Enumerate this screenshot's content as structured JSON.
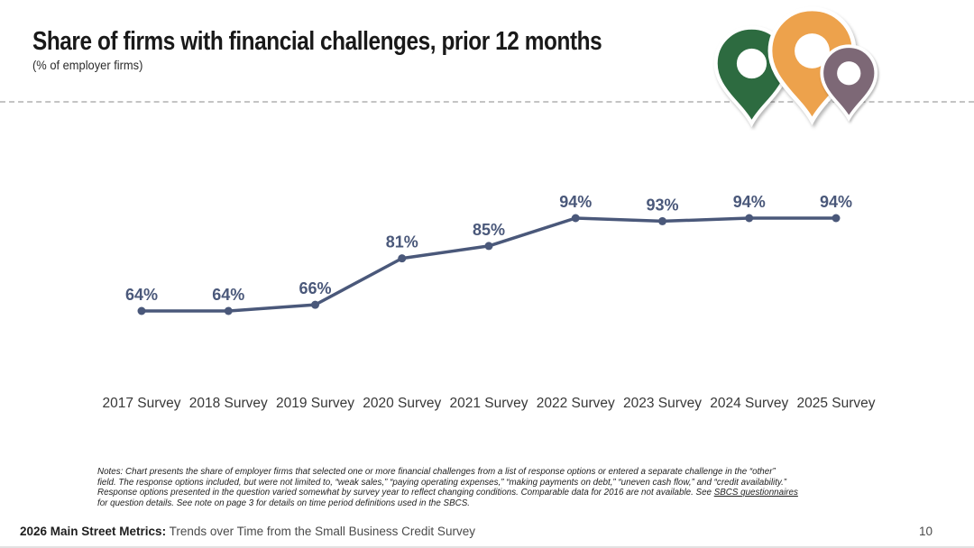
{
  "header": {
    "title": "Share of firms with financial challenges, prior 12 months",
    "subtitle": "(% of employer firms)"
  },
  "pins": {
    "colors": {
      "green": "#2D6B40",
      "orange": "#EDA24C",
      "purple": "#7D6876"
    }
  },
  "chart_data": {
    "type": "line",
    "title": "Share of firms with financial challenges, prior 12 months",
    "subtitle": "(% of employer firms)",
    "categories": [
      "2017 Survey",
      "2018 Survey",
      "2019 Survey",
      "2020 Survey",
      "2021 Survey",
      "2022 Survey",
      "2023 Survey",
      "2024 Survey",
      "2025 Survey"
    ],
    "values": [
      64,
      64,
      66,
      81,
      85,
      94,
      93,
      94,
      94
    ],
    "unit": "%",
    "ylim": [
      60,
      100
    ],
    "grid": false,
    "data_labels": true,
    "line_color": "#4A587A",
    "marker_color": "#4A587A",
    "label_color": "#4A587A",
    "axis_label_color": "#383838",
    "legend": "none"
  },
  "notes": {
    "line1": "Notes: Chart presents the share of employer firms that selected one or more financial challenges from a list of response options or entered a separate challenge in the “other”",
    "line2": "field. The response options included, but were not limited to, “weak sales,” “paying operating expenses,” “making payments on debt,” “uneven cash flow,” and “credit availability.”",
    "line3_before": "Response options presented in the question varied somewhat by survey year to reflect changing conditions. Comparable data for 2016 are not available. See ",
    "link_text": "SBCS questionnaires",
    "line4": "for question details. See note on page 3 for details on time period definitions used in the SBCS."
  },
  "footer": {
    "brand_bold": "2026 Main Street Metrics:",
    "brand_rest": " Trends over Time from the Small Business Credit Survey",
    "page_number": "10"
  }
}
